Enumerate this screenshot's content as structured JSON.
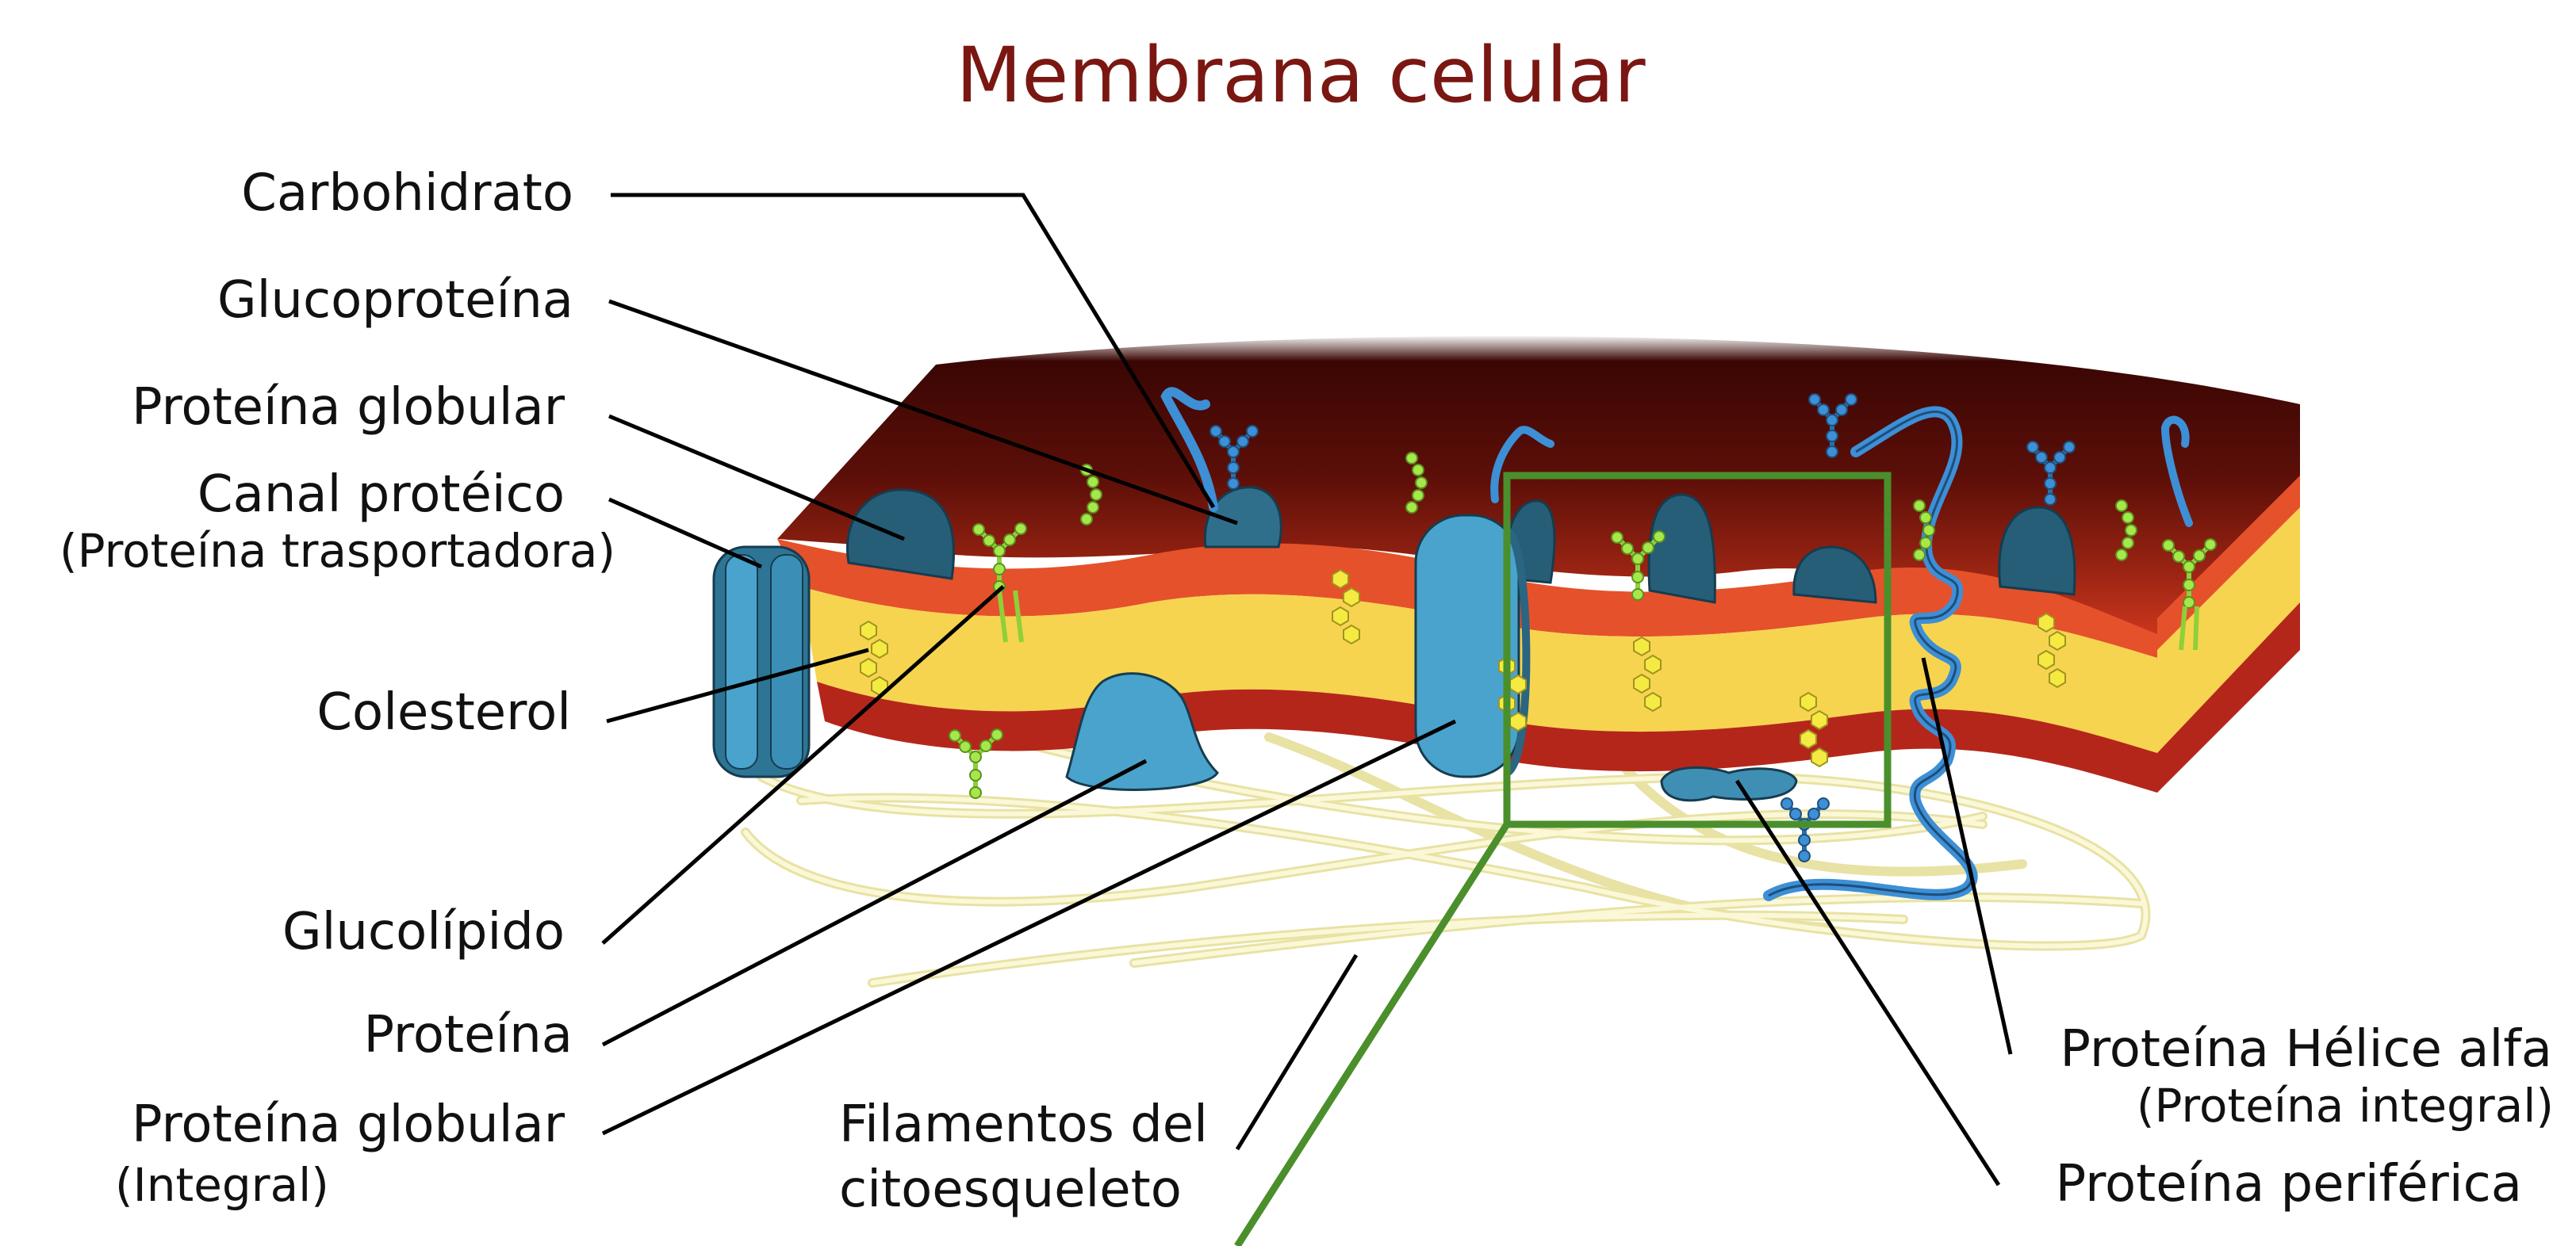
{
  "title": "Membrana celular",
  "colors": {
    "title": "#7a1712",
    "outer_layer": "#b5261a",
    "head_layer": "#e5512a",
    "lipid_core": "#f7d44f",
    "protein": "#3f8fb5",
    "protein_dark": "#2a6582",
    "carbohydrate": "#3d8fd6",
    "glycolipid": "#a4e84a",
    "cholesterol": "#f4ea42",
    "filament": "#f3efb9",
    "zoom_box": "#4a8f2c"
  },
  "labels": {
    "carbohidrato": "Carbohidrato",
    "glucoproteina": "Glucoproteína",
    "proteina_globular": "Proteína globular",
    "canal_proteico": "Canal protéico",
    "canal_proteico_sub": "(Proteína trasportadora)",
    "colesterol": "Colesterol",
    "glucolipido": "Glucolípido",
    "proteina": "Proteína",
    "proteina_globular_integral": "Proteína globular",
    "proteina_globular_integral_sub": "(Integral)",
    "filamentos_line1": "Filamentos del",
    "filamentos_line2": "citoesqueleto",
    "helice_alfa": "Proteína Hélice alfa",
    "helice_alfa_sub": "(Proteína integral)",
    "periferica": "Proteína periférica"
  }
}
